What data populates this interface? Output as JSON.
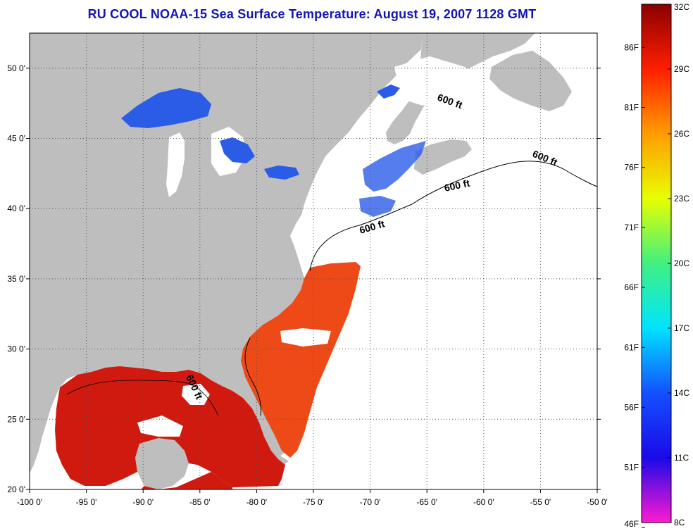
{
  "title": "RU COOL  NOAA-15  Sea Surface Temperature:  August 19, 2007 1128 GMT",
  "map": {
    "lon_range": [
      -100,
      -50
    ],
    "lat_range": [
      20,
      52.5
    ],
    "grid": true,
    "x_tick_labels": [
      "-100 0'",
      "-95 0'",
      "-90 0'",
      "-85 0'",
      "-80 0'",
      "-75 0'",
      "-70 0'",
      "-65 0'",
      "-60 0'",
      "-55 0'",
      "-50 0'"
    ],
    "x_tick_values": [
      -100,
      -95,
      -90,
      -85,
      -80,
      -75,
      -70,
      -65,
      -60,
      -55,
      -50
    ],
    "y_tick_labels": [
      "20 0'",
      "25 0'",
      "30 0'",
      "35 0'",
      "40 0'",
      "45 0'",
      "50 0'"
    ],
    "y_tick_values": [
      20,
      25,
      30,
      35,
      40,
      45,
      50
    ],
    "contour_label": "600 ft",
    "colors": {
      "land": "#bebebe",
      "no_data": "#ffffff",
      "gulf_sst": "#d01a10",
      "atlantic_sst": "#ee4a18",
      "great_lakes_sst": "#2a5ce8"
    }
  },
  "colorbar": {
    "celsius_labels": [
      "32C",
      "29C",
      "26C",
      "23C",
      "20C",
      "17C",
      "14C",
      "11C",
      "8C"
    ],
    "celsius_values": [
      32,
      29,
      26,
      23,
      20,
      17,
      14,
      11,
      8
    ],
    "fahrenheit_labels": [
      "86F",
      "81F",
      "76F",
      "71F",
      "66F",
      "61F",
      "56F",
      "51F",
      "46F"
    ],
    "fahrenheit_values": [
      86,
      81,
      76,
      71,
      66,
      61,
      56,
      51,
      46
    ],
    "range_c": [
      8,
      32
    ],
    "stops": [
      {
        "c": 8,
        "color": "#ff1ad0"
      },
      {
        "c": 11,
        "color": "#1a0ae8"
      },
      {
        "c": 14,
        "color": "#1450ff"
      },
      {
        "c": 17,
        "color": "#00e4ff"
      },
      {
        "c": 20,
        "color": "#40f080"
      },
      {
        "c": 23,
        "color": "#e8ff00"
      },
      {
        "c": 26,
        "color": "#ff9c00"
      },
      {
        "c": 29,
        "color": "#ff1e00"
      },
      {
        "c": 32,
        "color": "#8a0000"
      }
    ]
  }
}
